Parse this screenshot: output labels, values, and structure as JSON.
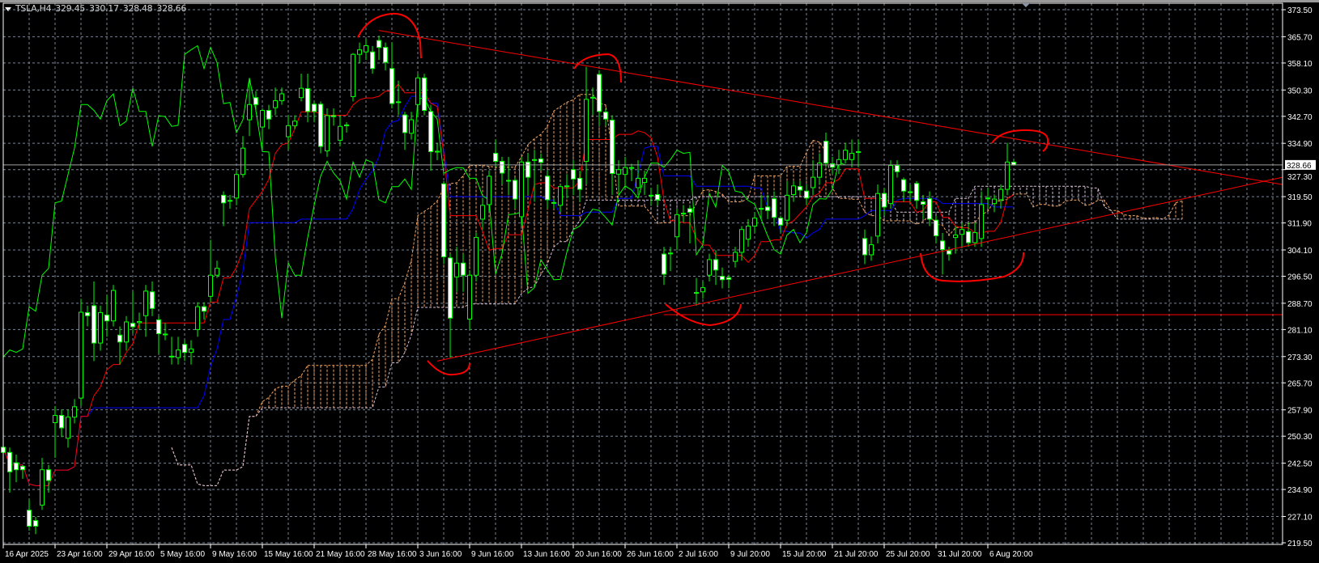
{
  "header": {
    "symbol": "TSLA,H4",
    "open": "329.45",
    "high": "330.17",
    "low": "328.48",
    "close": "328.66"
  },
  "colors": {
    "background": "#000000",
    "grid": "#7a8594",
    "bull_body": "#000000",
    "bear_body": "#ffffff",
    "candle_outline": "#00ff00",
    "tenkan": "#ff0000",
    "kijun": "#0000ff",
    "chikou": "#00ff00",
    "span_a": "#f4a460",
    "span_b": "#d8bfd8",
    "drawings": "#ff0000",
    "price_line": "#a0a0a0"
  },
  "chart_data": {
    "type": "candlestick",
    "symbol": "TSLA",
    "timeframe": "H4",
    "indicators": [
      "ichimoku"
    ],
    "ylim": [
      219.5,
      373.5
    ],
    "grid": true,
    "current_price": "328.66",
    "y_ticks": [
      "373.50",
      "365.70",
      "358.10",
      "350.30",
      "342.70",
      "334.90",
      "327.30",
      "319.50",
      "311.90",
      "304.10",
      "296.50",
      "288.70",
      "281.10",
      "273.30",
      "265.70",
      "257.90",
      "250.30",
      "242.50",
      "234.90",
      "227.10",
      "219.50"
    ],
    "x_ticks": [
      "16 Apr 2025",
      "23 Apr 16:00",
      "29 Apr 16:00",
      "5 May 16:00",
      "9 May 16:00",
      "15 May 16:00",
      "21 May 16:00",
      "28 May 16:00",
      "3 Jun 16:00",
      "9 Jun 16:00",
      "13 Jun 16:00",
      "20 Jun 16:00",
      "26 Jun 16:00",
      "2 Jul 16:00",
      "9 Jul 20:00",
      "15 Jul 20:00",
      "21 Jul 20:00",
      "25 Jul 20:00",
      "31 Jul 20:00",
      "6 Aug 20:00"
    ],
    "x_tick_every_bars": 8,
    "ohlc": [
      [
        247.1,
        250,
        244,
        245.6
      ],
      [
        245.6,
        247,
        234,
        240.0
      ],
      [
        242.6,
        245,
        237,
        240.6
      ],
      [
        241.6,
        242,
        238,
        240.6
      ],
      [
        228.9,
        232,
        223,
        224.3
      ],
      [
        225.9,
        227,
        222,
        224.3
      ],
      [
        230.4,
        244,
        229,
        240.6
      ],
      [
        240.6,
        242,
        234,
        237.5
      ],
      [
        254.2,
        259,
        244,
        256.3
      ],
      [
        256.3,
        258,
        250,
        252.7
      ],
      [
        249.7,
        258,
        247,
        255.8
      ],
      [
        255.8,
        261,
        254,
        258.8
      ],
      [
        261.3,
        290,
        259,
        286.1
      ],
      [
        286.0,
        288,
        282,
        285.1
      ],
      [
        288.0,
        295,
        272,
        277.2
      ],
      [
        277.2,
        288,
        275,
        286.0
      ],
      [
        285.3,
        291,
        279,
        283.6
      ],
      [
        283.6,
        294,
        282,
        292.4
      ],
      [
        279.5,
        282,
        271,
        277.5
      ],
      [
        277.5,
        285,
        275,
        283.3
      ],
      [
        282.9,
        292,
        280,
        281.9
      ],
      [
        283.1,
        286,
        281,
        283.4
      ],
      [
        285.1,
        294,
        279,
        292.2
      ],
      [
        292.0,
        295,
        285,
        287.2
      ],
      [
        283.9,
        285,
        274,
        279.9
      ],
      [
        279.8,
        283,
        278,
        279.6
      ],
      [
        273.4,
        279,
        271,
        273.2
      ],
      [
        273.0,
        279,
        271,
        275.2
      ],
      [
        276.8,
        278,
        272,
        274.5
      ],
      [
        274.5,
        278,
        271,
        275.5
      ],
      [
        281.1,
        289,
        279,
        287.7
      ],
      [
        287.7,
        289,
        284,
        286.4
      ],
      [
        290.7,
        307,
        289,
        296.8
      ],
      [
        296.8,
        301,
        296,
        298.8
      ],
      [
        319.9,
        321,
        311,
        317.7
      ],
      [
        318.4,
        320,
        316,
        318.2
      ],
      [
        319.1,
        327,
        317,
        325.9
      ],
      [
        325.9,
        337,
        325,
        333.5
      ],
      [
        341.7,
        353,
        337,
        346.1
      ],
      [
        348.1,
        350,
        344,
        346.1
      ],
      [
        339.6,
        345,
        333,
        344.4
      ],
      [
        344.4,
        346,
        339,
        341.9
      ],
      [
        345.2,
        351,
        343,
        347.2
      ],
      [
        347.2,
        351,
        346,
        349.2
      ],
      [
        336.8,
        343,
        333,
        340.0
      ],
      [
        340.0,
        343,
        339,
        341.3
      ],
      [
        348.1,
        355,
        347,
        350.8
      ],
      [
        350.7,
        355,
        341,
        344.1
      ],
      [
        346.2,
        347,
        341,
        344.1
      ],
      [
        346.2,
        347,
        332,
        334.0
      ],
      [
        332.7,
        345,
        331,
        342.9
      ],
      [
        342.9,
        345,
        340,
        342.6
      ],
      [
        335.8,
        343,
        334,
        339.8
      ],
      [
        340.2,
        341,
        338,
        340.1
      ],
      [
        348.4,
        361,
        347,
        360.6
      ],
      [
        360.6,
        364,
        358,
        361.9
      ],
      [
        361.3,
        365,
        359,
        363.1
      ],
      [
        361.3,
        363,
        355,
        356.5
      ],
      [
        364.6,
        366,
        359,
        362.6
      ],
      [
        362.6,
        364,
        356,
        358.3
      ],
      [
        356.5,
        364,
        345,
        346.4
      ],
      [
        346.9,
        353,
        343,
        346.7
      ],
      [
        343.1,
        344,
        333,
        338.0
      ],
      [
        337.8,
        344,
        336,
        341.7
      ],
      [
        346.1,
        355,
        343,
        353.8
      ],
      [
        353.8,
        355,
        343,
        344.4
      ],
      [
        344.1,
        346,
        327,
        332.5
      ],
      [
        332.6,
        335,
        330,
        332.4
      ],
      [
        323.2,
        324,
        300,
        302.1
      ],
      [
        301.8,
        303,
        273,
        284.4
      ],
      [
        296.3,
        305,
        292,
        300.3
      ],
      [
        300.3,
        303,
        292,
        296.8
      ],
      [
        284.1,
        298,
        281,
        296.8
      ],
      [
        296.8,
        309,
        295,
        307.7
      ],
      [
        313.0,
        319,
        310,
        317.0
      ],
      [
        317.2,
        327,
        315,
        325.4
      ],
      [
        332.0,
        336,
        328,
        329.7
      ],
      [
        329.7,
        331,
        323,
        326.3
      ],
      [
        324.2,
        331,
        320,
        324.1
      ],
      [
        324.2,
        325,
        316,
        318.8
      ],
      [
        313.7,
        331,
        311,
        329.5
      ],
      [
        329.5,
        332,
        320,
        325.1
      ],
      [
        330.2,
        333,
        318,
        330.1
      ],
      [
        330.4,
        332,
        327,
        329.4
      ],
      [
        325.4,
        327,
        316,
        318.6
      ],
      [
        317.8,
        319,
        316,
        317.7
      ],
      [
        317.0,
        323,
        315,
        322.4
      ],
      [
        322.6,
        326,
        319,
        322.4
      ],
      [
        327.3,
        330,
        320,
        324.6
      ],
      [
        324.8,
        327,
        318,
        321.6
      ],
      [
        329.7,
        357,
        323,
        347.6
      ],
      [
        348.2,
        351,
        343,
        348.1
      ],
      [
        354.8,
        356,
        340,
        344.1
      ],
      [
        343.9,
        345,
        340,
        341.9
      ],
      [
        341.6,
        343,
        320,
        326.2
      ],
      [
        326.0,
        330,
        320,
        327.3
      ],
      [
        325.9,
        331,
        322,
        327.9
      ],
      [
        327.9,
        329,
        324,
        327.8
      ],
      [
        322.1,
        330,
        320,
        324.8
      ],
      [
        323.6,
        327,
        320,
        324.8
      ],
      [
        319.9,
        322,
        317,
        319.7
      ],
      [
        320.1,
        323,
        317,
        318.6
      ],
      [
        302.9,
        305,
        294,
        297.1
      ],
      [
        303.2,
        305,
        298,
        303.0
      ],
      [
        307.9,
        316,
        304,
        314.3
      ],
      [
        314.7,
        317,
        312,
        314.5
      ],
      [
        316.0,
        317,
        306,
        315.0
      ],
      [
        291.8,
        296,
        288,
        291.6
      ],
      [
        292.0,
        295,
        290,
        293.2
      ],
      [
        296.8,
        303,
        295,
        301.3
      ],
      [
        301.3,
        304,
        294,
        298.3
      ],
      [
        296.5,
        299,
        293,
        295.5
      ],
      [
        296.1,
        297,
        293,
        295.6
      ],
      [
        300.8,
        305,
        299,
        303.4
      ],
      [
        303.4,
        311,
        301,
        310.0
      ],
      [
        307.2,
        313,
        305,
        311.0
      ],
      [
        311.0,
        315,
        309,
        313.3
      ],
      [
        316.1,
        320,
        313,
        315.9
      ],
      [
        316.5,
        320,
        313,
        315.5
      ],
      [
        318.9,
        321,
        311,
        313.5
      ],
      [
        313.3,
        314,
        309,
        311.3
      ],
      [
        312.7,
        324,
        311,
        319.9
      ],
      [
        320.1,
        324,
        318,
        322.6
      ],
      [
        322.4,
        324,
        320,
        321.4
      ],
      [
        321.1,
        323,
        317,
        319.1
      ],
      [
        322.1,
        330,
        320,
        325.1
      ],
      [
        325.1,
        332,
        323,
        329.2
      ],
      [
        335.5,
        338,
        328,
        329.2
      ],
      [
        329.0,
        331,
        326,
        328.0
      ],
      [
        328.7,
        333,
        326,
        330.2
      ],
      [
        330.2,
        335,
        329,
        332.9
      ],
      [
        330.2,
        336,
        328,
        332.0
      ],
      [
        332.5,
        336,
        328,
        332.3
      ],
      [
        307.4,
        310,
        300,
        302.7
      ],
      [
        302.7,
        308,
        301,
        305.6
      ],
      [
        308.1,
        323,
        306,
        320.4
      ],
      [
        320.4,
        322,
        314,
        316.5
      ],
      [
        317.5,
        330,
        316,
        328.5
      ],
      [
        328.5,
        330,
        325,
        326.7
      ],
      [
        324.4,
        325,
        318,
        321.1
      ],
      [
        320.9,
        323,
        318,
        320.7
      ],
      [
        323.3,
        324,
        316,
        318.4
      ],
      [
        318.0,
        320,
        313,
        317.3
      ],
      [
        318.9,
        321,
        311,
        313.0
      ],
      [
        312.7,
        314,
        306,
        308.2
      ],
      [
        306.7,
        309,
        297,
        304.2
      ],
      [
        303.9,
        305,
        301,
        302.9
      ],
      [
        307.7,
        311,
        303,
        308.4
      ],
      [
        308.6,
        312,
        305,
        310.0
      ],
      [
        309.4,
        312,
        305,
        306.2
      ],
      [
        306.2,
        312,
        305,
        309.1
      ],
      [
        307.4,
        321,
        305,
        317.2
      ],
      [
        319.1,
        322,
        316,
        318.9
      ],
      [
        317.5,
        320,
        315,
        318.8
      ],
      [
        318.6,
        323,
        316,
        321.6
      ],
      [
        321.6,
        335,
        320,
        329.5
      ],
      [
        329.45,
        330.17,
        328.48,
        328.66
      ]
    ],
    "trendlines": [
      {
        "from_bar": 58,
        "from_price": 367.5,
        "to_bar": 197.5,
        "to_price": 323.0
      },
      {
        "from_bar": 67,
        "from_price": 272.0,
        "to_bar": 197.5,
        "to_price": 325.1
      },
      {
        "from_bar": 102,
        "from_price": 285.4,
        "to_bar": 197.5,
        "to_price": 285.4
      }
    ]
  }
}
